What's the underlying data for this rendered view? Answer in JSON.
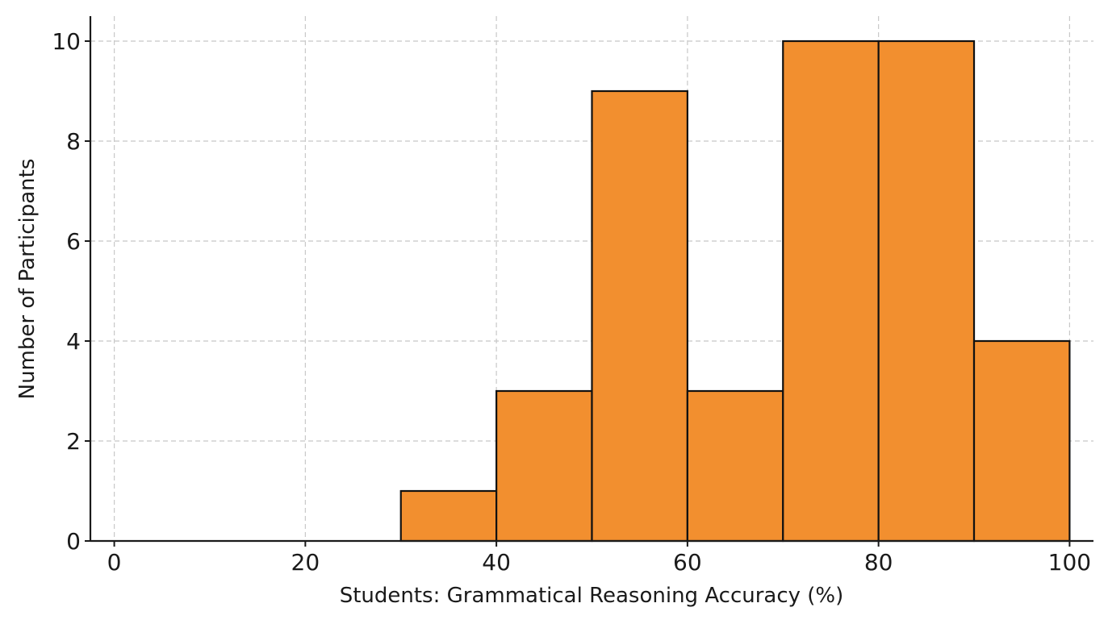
{
  "chart_data": {
    "type": "bar",
    "bins": [
      {
        "start": 0,
        "end": 10,
        "count": 0
      },
      {
        "start": 10,
        "end": 20,
        "count": 0
      },
      {
        "start": 20,
        "end": 30,
        "count": 0
      },
      {
        "start": 30,
        "end": 40,
        "count": 1
      },
      {
        "start": 40,
        "end": 50,
        "count": 3
      },
      {
        "start": 50,
        "end": 60,
        "count": 9
      },
      {
        "start": 60,
        "end": 70,
        "count": 3
      },
      {
        "start": 70,
        "end": 80,
        "count": 10
      },
      {
        "start": 80,
        "end": 90,
        "count": 10
      },
      {
        "start": 90,
        "end": 100,
        "count": 4
      }
    ],
    "title": "",
    "xlabel": "Students: Grammatical Reasoning Accuracy (%)",
    "ylabel": "Number of Participants",
    "xlim": [
      -2.5,
      102.5
    ],
    "ylim": [
      0,
      10.5
    ],
    "xticks": [
      0,
      20,
      40,
      60,
      80,
      100
    ],
    "yticks": [
      0,
      2,
      4,
      6,
      8,
      10
    ],
    "grid": true,
    "colors": {
      "bar_fill": "#f28f2f",
      "bar_edge": "#111111",
      "grid": "#c8c8c8",
      "axis": "#1a1a1a"
    }
  }
}
